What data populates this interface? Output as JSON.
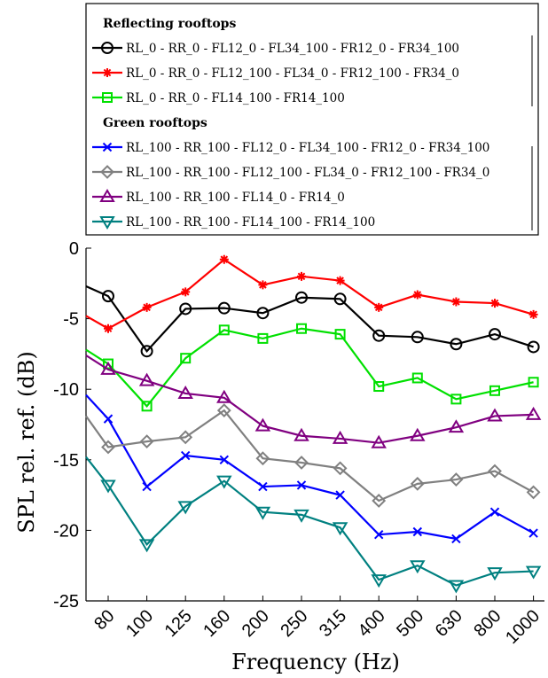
{
  "chart_data": {
    "type": "line",
    "xlabel": "Frequency (Hz)",
    "ylabel": "SPL rel. ref. (dB)",
    "ylim": [
      -25,
      0
    ],
    "y_ticks": [
      0,
      -5,
      -10,
      -15,
      -20,
      -25
    ],
    "categories": [
      "80",
      "100",
      "125",
      "160",
      "200",
      "250",
      "315",
      "400",
      "500",
      "630",
      "800",
      "1000"
    ],
    "grid": false,
    "legend_position": "top",
    "legend_groups": [
      {
        "title": "Reflecting rooftops",
        "series": [
          {
            "name": "RL_0 - RR_0 - FL12_0 - FL34_100 - FR12_0 - FR34_100",
            "color": "#000000",
            "marker": "circle",
            "start": -2.7,
            "values": [
              -3.4,
              -7.3,
              -4.3,
              -4.25,
              -4.6,
              -3.5,
              -3.6,
              -6.2,
              -6.3,
              -6.8,
              -6.1,
              -7.0
            ]
          },
          {
            "name": "RL_0 - RR_0 - FL12_100 - FL34_0 - FR12_100 - FR34_0",
            "color": "#ff0000",
            "marker": "star",
            "start": -4.8,
            "values": [
              -5.7,
              -4.2,
              -3.1,
              -0.8,
              -2.6,
              -2.0,
              -2.3,
              -4.2,
              -3.3,
              -3.8,
              -3.9,
              -4.7
            ]
          },
          {
            "name": "RL_0 - RR_0 - FL14_100 - FR14_100",
            "color": "#00e000",
            "marker": "square",
            "start": -7.2,
            "values": [
              -8.2,
              -11.2,
              -7.8,
              -5.8,
              -6.4,
              -5.7,
              -6.1,
              -9.8,
              -9.2,
              -10.7,
              -10.1,
              -9.5
            ]
          }
        ]
      },
      {
        "title": "Green rooftops",
        "series": [
          {
            "name": "RL_100 - RR_100 - FL12_0 - FL34_100 - FR12_0 - FR34_100",
            "color": "#0000ff",
            "marker": "x",
            "start": -10.4,
            "values": [
              -12.1,
              -16.9,
              -14.7,
              -15.0,
              -16.9,
              -16.8,
              -17.5,
              -20.3,
              -20.1,
              -20.6,
              -18.7,
              -20.2
            ]
          },
          {
            "name": "RL_100 - RR_100 - FL12_100 - FL34_0 - FR12_100 - FR34_0",
            "color": "#808080",
            "marker": "diamond",
            "start": -11.9,
            "values": [
              -14.1,
              -13.7,
              -13.4,
              -11.5,
              -14.9,
              -15.2,
              -15.6,
              -17.9,
              -16.7,
              -16.4,
              -15.8,
              -17.3
            ]
          },
          {
            "name": "RL_100 - RR_100 - FL14_0 - FR14_0",
            "color": "#800080",
            "marker": "triangle-up",
            "start": -7.6,
            "values": [
              -8.6,
              -9.4,
              -10.3,
              -10.6,
              -12.6,
              -13.3,
              -13.5,
              -13.8,
              -13.3,
              -12.7,
              -11.9,
              -11.8
            ]
          },
          {
            "name": "RL_100 - RR_100 - FL14_100 - FR14_100",
            "color": "#008080",
            "marker": "triangle-down",
            "start": -14.8,
            "values": [
              -16.8,
              -21.0,
              -18.3,
              -16.5,
              -18.7,
              -18.9,
              -19.8,
              -23.5,
              -22.5,
              -23.9,
              -23.0,
              -22.9
            ]
          }
        ]
      }
    ]
  }
}
